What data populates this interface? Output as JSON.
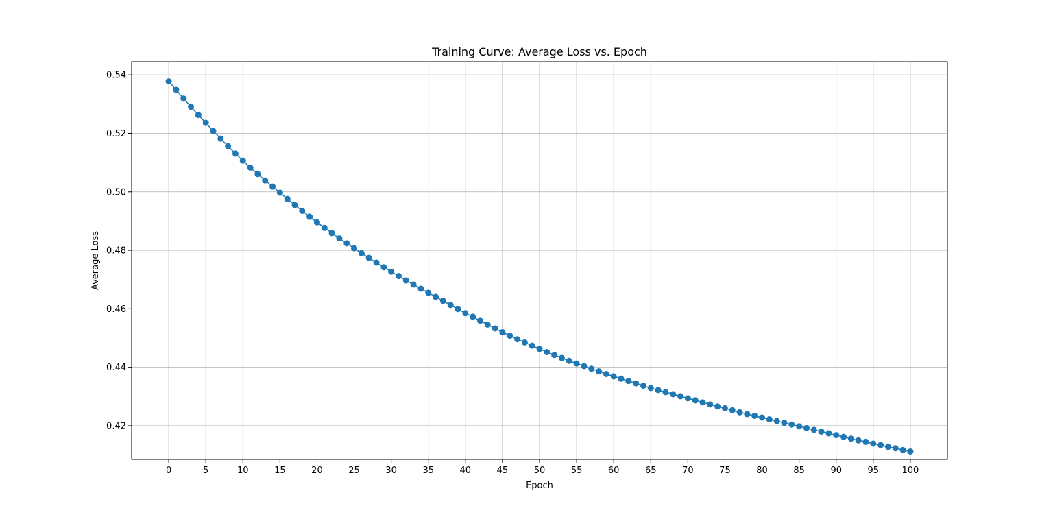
{
  "chart_data": {
    "type": "line",
    "title": "Training Curve: Average Loss vs. Epoch",
    "xlabel": "Epoch",
    "ylabel": "Average Loss",
    "xlim": [
      -5,
      105
    ],
    "ylim": [
      0.4085,
      0.5445
    ],
    "x_ticks": [
      "0",
      "5",
      "10",
      "15",
      "20",
      "25",
      "30",
      "35",
      "40",
      "45",
      "50",
      "55",
      "60",
      "65",
      "70",
      "75",
      "80",
      "85",
      "90",
      "95",
      "100"
    ],
    "y_ticks": [
      "0.42",
      "0.44",
      "0.46",
      "0.48",
      "0.50",
      "0.52",
      "0.54"
    ],
    "grid": true,
    "marker": "circle",
    "series": [
      {
        "color": "#1f77b4",
        "x": [
          0,
          1,
          2,
          3,
          4,
          5,
          6,
          7,
          8,
          9,
          10,
          11,
          12,
          13,
          14,
          15,
          16,
          17,
          18,
          19,
          20,
          21,
          22,
          23,
          24,
          25,
          26,
          27,
          28,
          29,
          30,
          31,
          32,
          33,
          34,
          35,
          36,
          37,
          38,
          39,
          40,
          41,
          42,
          43,
          44,
          45,
          46,
          47,
          48,
          49,
          50,
          51,
          52,
          53,
          54,
          55,
          56,
          57,
          58,
          59,
          60,
          61,
          62,
          63,
          64,
          65,
          66,
          67,
          68,
          69,
          70,
          71,
          72,
          73,
          74,
          75,
          76,
          77,
          78,
          79,
          80,
          81,
          82,
          83,
          84,
          85,
          86,
          87,
          88,
          89,
          90,
          91,
          92,
          93,
          94,
          95,
          96,
          97,
          98,
          99,
          100
        ],
        "values": [
          0.5378,
          0.5349,
          0.5319,
          0.5291,
          0.5263,
          0.5236,
          0.5208,
          0.5182,
          0.5156,
          0.5131,
          0.5107,
          0.5083,
          0.5061,
          0.5039,
          0.5018,
          0.4997,
          0.4976,
          0.4955,
          0.4935,
          0.4915,
          0.4896,
          0.4877,
          0.4859,
          0.4841,
          0.4824,
          0.4807,
          0.479,
          0.4774,
          0.4758,
          0.4742,
          0.4727,
          0.4712,
          0.4697,
          0.4683,
          0.4669,
          0.4655,
          0.4641,
          0.4627,
          0.4613,
          0.4599,
          0.4585,
          0.4573,
          0.4559,
          0.4546,
          0.4533,
          0.452,
          0.4508,
          0.4496,
          0.4485,
          0.4474,
          0.4463,
          0.4452,
          0.4442,
          0.4432,
          0.4422,
          0.4413,
          0.4404,
          0.4395,
          0.4386,
          0.4377,
          0.4369,
          0.4361,
          0.4353,
          0.4345,
          0.4337,
          0.4329,
          0.4322,
          0.4315,
          0.4308,
          0.4301,
          0.4294,
          0.4287,
          0.428,
          0.4273,
          0.4266,
          0.426,
          0.4253,
          0.4246,
          0.424,
          0.4234,
          0.4228,
          0.4222,
          0.4216,
          0.421,
          0.4204,
          0.4198,
          0.4192,
          0.4186,
          0.418,
          0.4174,
          0.4168,
          0.4162,
          0.4156,
          0.415,
          0.4145,
          0.4139,
          0.4134,
          0.4128,
          0.4123,
          0.4117,
          0.4112
        ]
      }
    ]
  }
}
